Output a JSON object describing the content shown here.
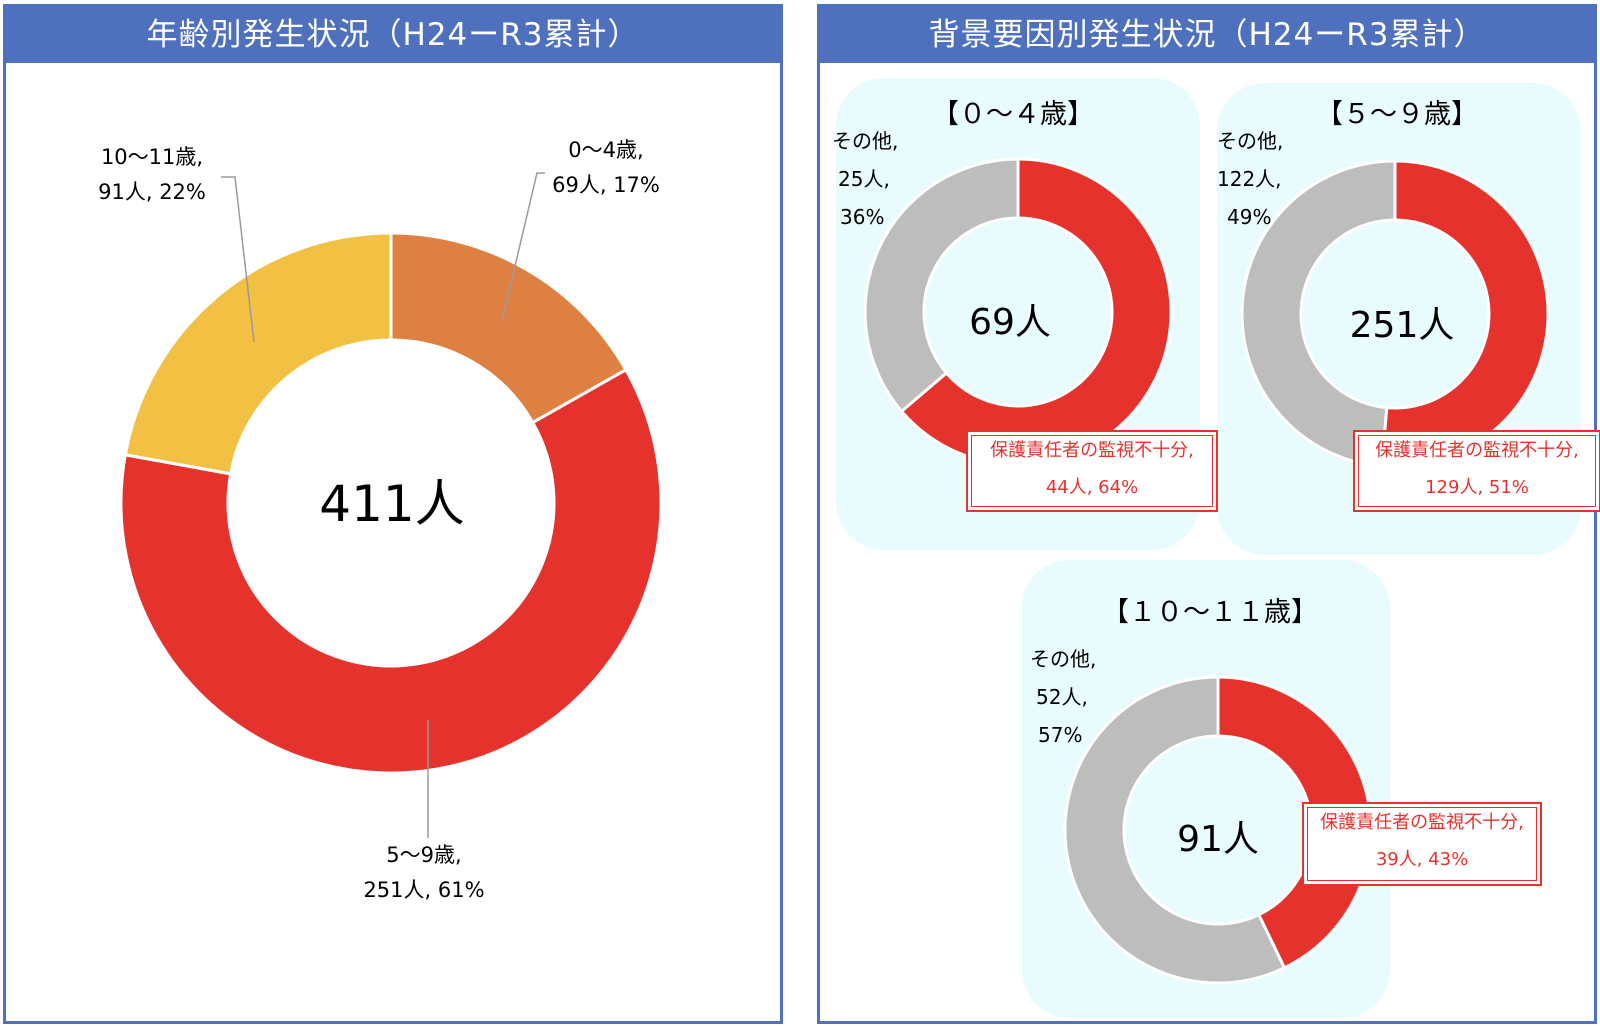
{
  "colors": {
    "header_bg": "#4f70bc",
    "red": "#e5322c",
    "orange": "#dd8042",
    "yellow": "#f2c043",
    "gray": "#bdbdbd",
    "sub_bg": "#e8fbfd"
  },
  "chart_data": [
    {
      "type": "pie",
      "title": "年齢別発生状況（H24ーR3累計）",
      "center_label": "411人",
      "categories": [
        "0～4歳",
        "5～9歳",
        "10～11歳"
      ],
      "values": [
        69,
        251,
        91
      ],
      "percents": [
        17,
        61,
        22
      ],
      "labels": [
        [
          "0～4歳,",
          "69人, 17%"
        ],
        [
          "5～9歳,",
          "251人, 61%"
        ],
        [
          "10～11歳,",
          "91人, 22%"
        ]
      ]
    },
    {
      "type": "pie",
      "title": "背景要因別発生状況（H24ーR3累計）",
      "subcharts": [
        {
          "title": "【０～４歳】",
          "center_label": "69人",
          "categories": [
            "保護責任者の監視不十分",
            "その他"
          ],
          "values": [
            44,
            25
          ],
          "percents": [
            64,
            36
          ],
          "main_label": [
            "保護責任者の監視不十分,",
            "44人, 64%"
          ],
          "other_label": [
            "その他,",
            "25人,",
            "36%"
          ]
        },
        {
          "title": "【５～９歳】",
          "center_label": "251人",
          "categories": [
            "保護責任者の監視不十分",
            "その他"
          ],
          "values": [
            129,
            122
          ],
          "percents": [
            51,
            49
          ],
          "main_label": [
            "保護責任者の監視不十分,",
            "129人, 51%"
          ],
          "other_label": [
            "その他,",
            "122人,",
            "49%"
          ]
        },
        {
          "title": "【１０～１１歳】",
          "center_label": "91人",
          "categories": [
            "保護責任者の監視不十分",
            "その他"
          ],
          "values": [
            39,
            52
          ],
          "percents": [
            43,
            57
          ],
          "main_label": [
            "保護責任者の監視不十分,",
            "39人, 43%"
          ],
          "other_label": [
            "その他,",
            "52人,",
            "57%"
          ]
        }
      ]
    }
  ]
}
